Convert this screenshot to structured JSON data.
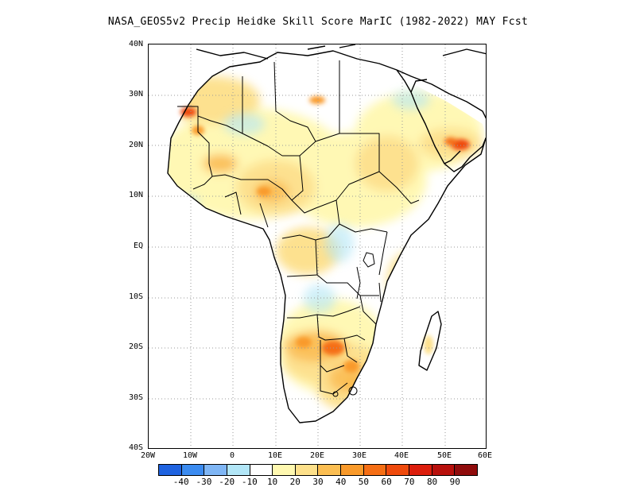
{
  "title": "NASA_GEOS5v2 Precip Heidke Skill Score MarIC (1982-2022) MAY Fcst",
  "axes": {
    "lat_labels": [
      "40N",
      "30N",
      "20N",
      "10N",
      "EQ",
      "10S",
      "20S",
      "30S",
      "40S"
    ],
    "lon_labels": [
      "20W",
      "10W",
      "0",
      "10E",
      "20E",
      "30E",
      "40E",
      "50E",
      "60E"
    ],
    "lon_range": [
      -20,
      60
    ],
    "lat_range": [
      -40,
      40
    ],
    "grid": "dotted, every 10 degrees"
  },
  "colorbar": {
    "labels": [
      "-40",
      "-30",
      "-20",
      "-10",
      "10",
      "20",
      "30",
      "40",
      "50",
      "60",
      "70",
      "80",
      "90"
    ],
    "colors": [
      "#1f63e0",
      "#3b8bf0",
      "#7fb6f5",
      "#b2e6f7",
      "#ffffff",
      "#fff8b0",
      "#fde08a",
      "#fbbe52",
      "#f99a2a",
      "#f56e14",
      "#ef4a0c",
      "#dc1e0c",
      "#b8100c",
      "#900c0c"
    ]
  },
  "skill_hotspots": [
    {
      "region": "Western Sahara / Mauritania",
      "level": "50-60"
    },
    {
      "region": "Southern Arabia (Oman/Yemen)",
      "level": "50-60"
    },
    {
      "region": "Zambia / Zimbabwe / Botswana",
      "level": "40-50"
    },
    {
      "region": "Southern Africa (South Africa)",
      "level": "30-50"
    },
    {
      "region": "Central Sahel (Chad/Nigeria)",
      "level": "20-40"
    }
  ]
}
